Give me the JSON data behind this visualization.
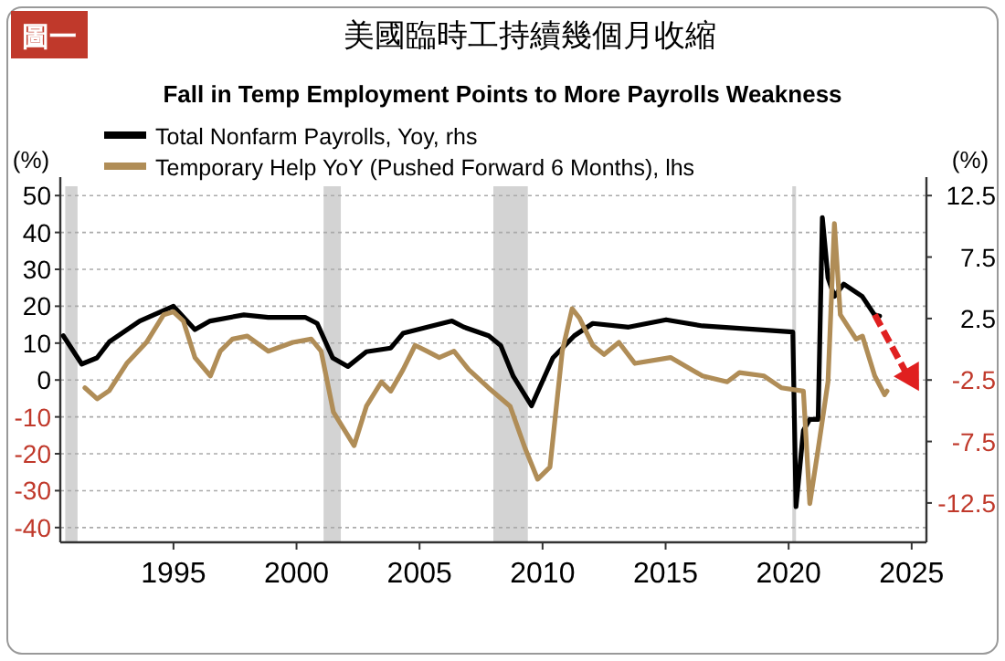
{
  "chart_data": {
    "type": "line",
    "title": "美國臨時工持續幾個月收縮",
    "subtitle": "Fall in Temp Employment Points to More Payrolls Weakness",
    "annotations": [
      "圖一"
    ],
    "ylabel": "(%)",
    "y2label": "(%)",
    "legend": "top",
    "grid": "y",
    "line_style": "solid",
    "xlim": [
      1990.4,
      2025.6
    ],
    "xticks": [
      1995,
      2000,
      2005,
      2010,
      2015,
      2020,
      2025
    ],
    "ylim": [
      -44,
      55
    ],
    "yticks": [
      50,
      40,
      30,
      20,
      10,
      0,
      -10,
      -20,
      -30,
      -40
    ],
    "y2lim": [
      -15.7,
      14
    ],
    "y2ticks": [
      12.5,
      7.5,
      2.5,
      -2.5,
      -7.5,
      -12.5
    ],
    "bands": [
      {
        "axis": "x",
        "from": 1990.6,
        "to": 1991.1,
        "color": "#d3d3d3"
      },
      {
        "axis": "x",
        "from": 2001.1,
        "to": 2001.8,
        "color": "#d3d3d3"
      },
      {
        "axis": "x",
        "from": 2008.0,
        "to": 2009.4,
        "color": "#d3d3d3"
      },
      {
        "axis": "x",
        "from": 2020.15,
        "to": 2020.3,
        "color": "#d3d3d3"
      }
    ],
    "series": [
      {
        "name": "Total Nonfarm Payrolls, Yoy, rhs",
        "color": "#000000",
        "axis": "y2",
        "x": [
          1990.52,
          1991.27,
          1991.89,
          1992.39,
          1993.63,
          1995.0,
          1995.87,
          1996.49,
          1997.86,
          1998.85,
          2000.35,
          2000.84,
          2001.47,
          2002.09,
          2002.84,
          2003.83,
          2004.33,
          2005.32,
          2006.32,
          2006.8,
          2007.81,
          2008.3,
          2008.81,
          2009.55,
          2010.42,
          2011.29,
          2012.04,
          2013.5,
          2015.02,
          2016.5,
          2018.0,
          2020.17,
          2020.3,
          2020.6,
          2020.86,
          2021.2,
          2021.37,
          2021.6,
          2021.86,
          2022.24,
          2022.99,
          2023.49,
          2023.7
        ],
        "values": [
          1.1,
          -1.2,
          -0.7,
          0.6,
          2.3,
          3.5,
          1.6,
          2.3,
          2.8,
          2.6,
          2.6,
          2.1,
          -0.7,
          -1.4,
          -0.2,
          0.1,
          1.3,
          1.8,
          2.3,
          1.8,
          1.1,
          0.3,
          -2.2,
          -4.6,
          -0.7,
          1.1,
          2.1,
          1.8,
          2.4,
          1.9,
          1.7,
          1.4,
          -12.8,
          -6.6,
          -5.7,
          -5.7,
          10.7,
          5.8,
          4.3,
          5.3,
          4.3,
          2.8,
          2.7
        ]
      },
      {
        "name": "Temporary Help YoY (Pushed Forward 6 Months), lhs",
        "color": "#b08d57",
        "x": [
          1991.4,
          1991.9,
          1992.39,
          1993.1,
          1993.9,
          1994.6,
          1995.0,
          1995.4,
          1995.87,
          1996.5,
          1996.9,
          1997.4,
          1998.0,
          1998.85,
          1999.85,
          2000.6,
          2001.0,
          2001.5,
          2002.34,
          2002.84,
          2003.45,
          2003.83,
          2004.33,
          2004.82,
          2005.3,
          2005.8,
          2006.4,
          2007.0,
          2007.8,
          2008.68,
          2009.3,
          2009.8,
          2010.3,
          2010.8,
          2011.2,
          2011.5,
          2012.04,
          2012.5,
          2013.1,
          2013.75,
          2015.2,
          2016.5,
          2017.5,
          2018.0,
          2019.0,
          2019.7,
          2020.6,
          2020.86,
          2021.2,
          2021.6,
          2021.86,
          2022.1,
          2022.74,
          2023.0,
          2023.5,
          2023.9,
          2024.0
        ],
        "values": [
          -2.1,
          -5.1,
          -2.9,
          4.5,
          10.2,
          17.7,
          18.5,
          16.0,
          6.1,
          1.1,
          7.8,
          11.1,
          11.9,
          7.8,
          10.2,
          11.1,
          7.8,
          -8.7,
          -17.8,
          -7.1,
          -0.5,
          -3.0,
          2.8,
          9.4,
          7.8,
          6.1,
          7.8,
          2.8,
          -2.1,
          -7.1,
          -18.7,
          -26.9,
          -23.6,
          7.8,
          19.3,
          16.8,
          9.4,
          6.9,
          10.2,
          4.5,
          6.1,
          1.1,
          -0.5,
          2.0,
          1.1,
          -2.1,
          -3.0,
          -33.5,
          -18.7,
          -0.5,
          42.4,
          17.7,
          11.1,
          11.9,
          1.1,
          -4.0,
          -3.0
        ]
      }
    ]
  }
}
